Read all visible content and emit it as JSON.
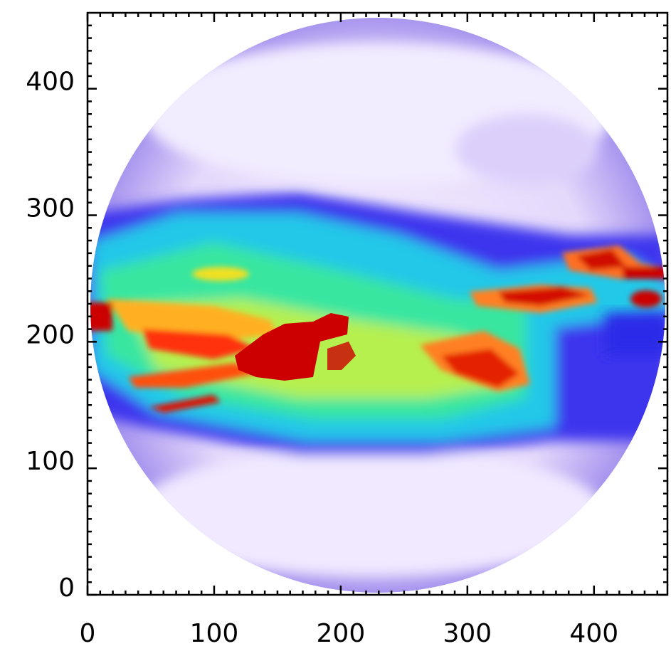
{
  "chart_data": {
    "type": "image",
    "xlim": [
      0,
      458
    ],
    "ylim": [
      0,
      460
    ],
    "xticks": [
      0,
      100,
      200,
      300,
      400
    ],
    "yticks": [
      0,
      100,
      200,
      300,
      400
    ],
    "xminorticks": [
      10,
      20,
      30,
      40,
      50,
      60,
      70,
      80,
      90,
      110,
      120,
      130,
      140,
      150,
      160,
      170,
      180,
      190,
      210,
      220,
      230,
      240,
      250,
      260,
      270,
      280,
      290,
      310,
      320,
      330,
      340,
      350,
      360,
      370,
      380,
      390,
      410,
      420,
      430,
      440,
      450
    ],
    "yminorticks": [
      10,
      20,
      30,
      40,
      50,
      60,
      70,
      80,
      90,
      110,
      120,
      130,
      140,
      150,
      160,
      170,
      180,
      190,
      210,
      220,
      230,
      240,
      250,
      260,
      270,
      280,
      290,
      310,
      320,
      330,
      340,
      350,
      360,
      370,
      380,
      390,
      410,
      420,
      430,
      440,
      450
    ]
  }
}
